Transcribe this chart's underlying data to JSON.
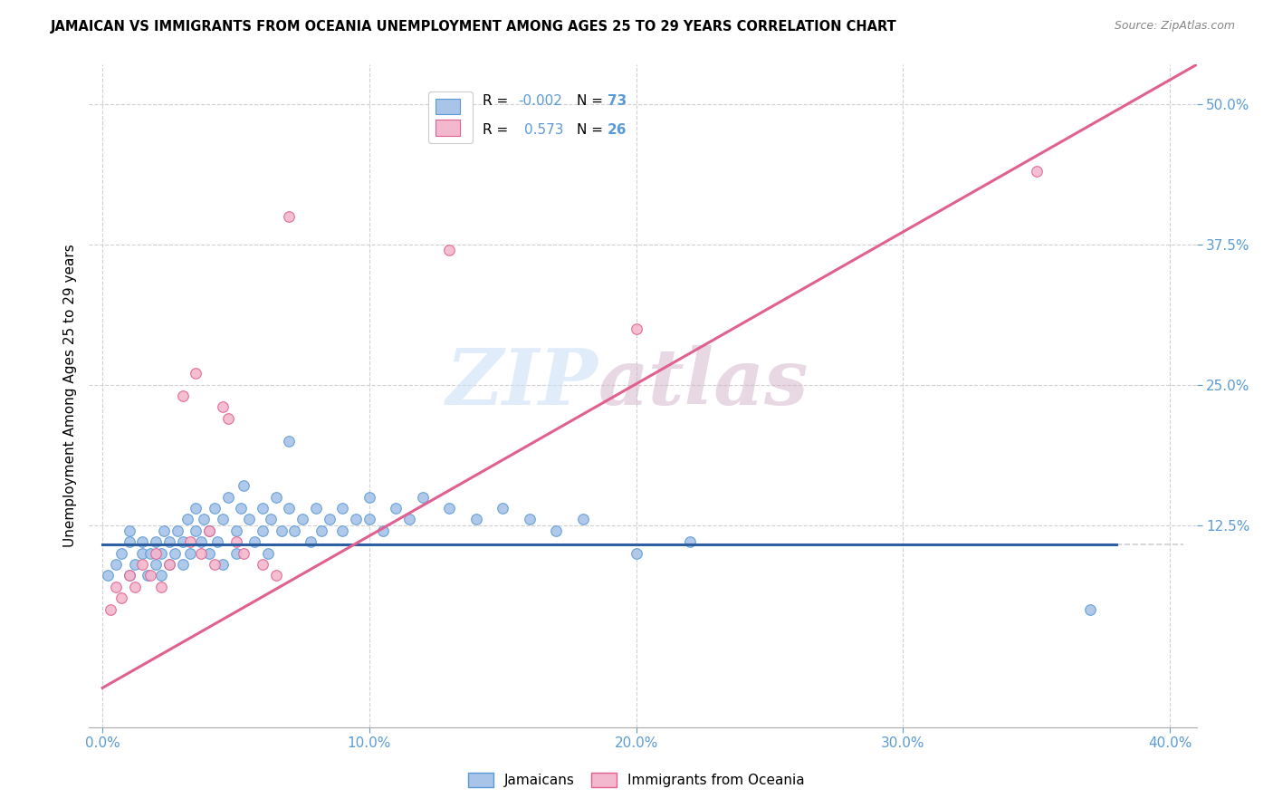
{
  "title": "JAMAICAN VS IMMIGRANTS FROM OCEANIA UNEMPLOYMENT AMONG AGES 25 TO 29 YEARS CORRELATION CHART",
  "source": "Source: ZipAtlas.com",
  "ylabel": "Unemployment Among Ages 25 to 29 years",
  "xlim": [
    -0.005,
    0.41
  ],
  "ylim": [
    -0.055,
    0.535
  ],
  "xticks": [
    0.0,
    0.1,
    0.2,
    0.3,
    0.4
  ],
  "yticks_right": [
    0.5,
    0.375,
    0.25,
    0.125
  ],
  "ytick_labels_right": [
    "50.0%",
    "37.5%",
    "25.0%",
    "12.5%"
  ],
  "xtick_labels": [
    "0.0%",
    "10.0%",
    "20.0%",
    "30.0%",
    "40.0%"
  ],
  "color_blue_fill": "#a8c4e8",
  "color_blue_edge": "#5b9bd5",
  "color_pink_fill": "#f4b8ce",
  "color_pink_edge": "#e06090",
  "color_blue_line": "#2e5fa3",
  "color_pink_line": "#e06090",
  "color_axis_text": "#5b9bd5",
  "color_grid": "#d0d0d0",
  "blue_R": "-0.002",
  "blue_N": "73",
  "pink_R": "0.573",
  "pink_N": "26",
  "blue_hline_y": 0.108,
  "pink_line_x0": 0.0,
  "pink_line_y0": -0.02,
  "pink_line_x1": 0.41,
  "pink_line_y1": 0.535,
  "blue_line_x0": 0.0,
  "blue_line_x1": 0.38,
  "blue_dots_x": [
    0.002,
    0.005,
    0.007,
    0.01,
    0.01,
    0.01,
    0.012,
    0.015,
    0.015,
    0.017,
    0.018,
    0.02,
    0.02,
    0.022,
    0.022,
    0.023,
    0.025,
    0.025,
    0.027,
    0.028,
    0.03,
    0.03,
    0.032,
    0.033,
    0.035,
    0.035,
    0.037,
    0.038,
    0.04,
    0.04,
    0.042,
    0.043,
    0.045,
    0.045,
    0.047,
    0.05,
    0.05,
    0.052,
    0.053,
    0.055,
    0.057,
    0.06,
    0.06,
    0.062,
    0.063,
    0.065,
    0.067,
    0.07,
    0.07,
    0.072,
    0.075,
    0.078,
    0.08,
    0.082,
    0.085,
    0.09,
    0.09,
    0.095,
    0.1,
    0.1,
    0.105,
    0.11,
    0.115,
    0.12,
    0.13,
    0.14,
    0.15,
    0.16,
    0.17,
    0.18,
    0.2,
    0.22,
    0.37
  ],
  "blue_dots_y": [
    0.08,
    0.09,
    0.1,
    0.08,
    0.11,
    0.12,
    0.09,
    0.1,
    0.11,
    0.08,
    0.1,
    0.09,
    0.11,
    0.08,
    0.1,
    0.12,
    0.09,
    0.11,
    0.1,
    0.12,
    0.09,
    0.11,
    0.13,
    0.1,
    0.12,
    0.14,
    0.11,
    0.13,
    0.1,
    0.12,
    0.14,
    0.11,
    0.09,
    0.13,
    0.15,
    0.1,
    0.12,
    0.14,
    0.16,
    0.13,
    0.11,
    0.12,
    0.14,
    0.1,
    0.13,
    0.15,
    0.12,
    0.2,
    0.14,
    0.12,
    0.13,
    0.11,
    0.14,
    0.12,
    0.13,
    0.14,
    0.12,
    0.13,
    0.15,
    0.13,
    0.12,
    0.14,
    0.13,
    0.15,
    0.14,
    0.13,
    0.14,
    0.13,
    0.12,
    0.13,
    0.1,
    0.11,
    0.05
  ],
  "pink_dots_x": [
    0.003,
    0.005,
    0.007,
    0.01,
    0.012,
    0.015,
    0.018,
    0.02,
    0.022,
    0.025,
    0.03,
    0.033,
    0.035,
    0.037,
    0.04,
    0.042,
    0.045,
    0.047,
    0.05,
    0.053,
    0.06,
    0.065,
    0.07,
    0.13,
    0.2,
    0.35
  ],
  "pink_dots_y": [
    0.05,
    0.07,
    0.06,
    0.08,
    0.07,
    0.09,
    0.08,
    0.1,
    0.07,
    0.09,
    0.24,
    0.11,
    0.26,
    0.1,
    0.12,
    0.09,
    0.23,
    0.22,
    0.11,
    0.1,
    0.09,
    0.08,
    0.4,
    0.37,
    0.3,
    0.44
  ]
}
